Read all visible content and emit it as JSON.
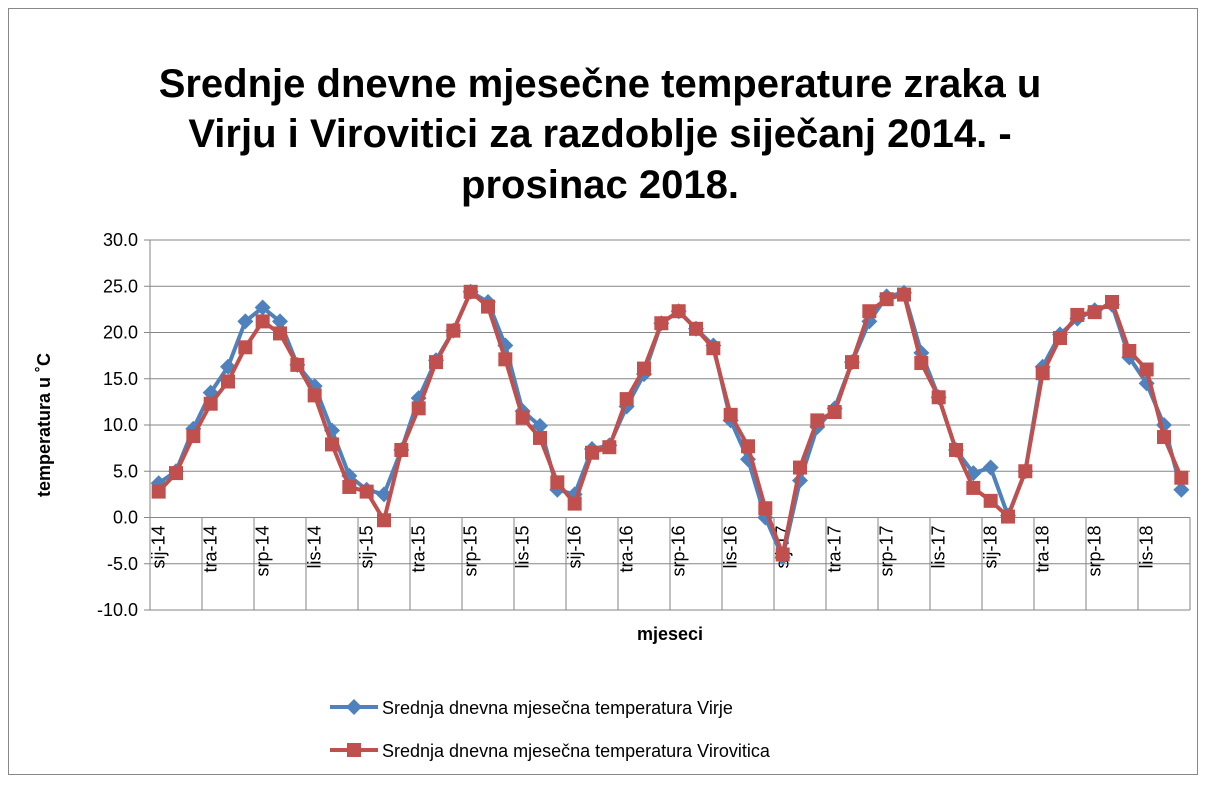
{
  "chart_data": {
    "type": "line",
    "title": [
      "Srednje dnevne mjesečne temperature zraka u",
      "Virju i Virovitici za razdoblje siječanj 2014. -",
      "prosinac 2018."
    ],
    "x_label": "mjeseci",
    "y_label": "temperatura u ˚C",
    "categories": [
      "sij-14",
      null,
      null,
      "tra-14",
      null,
      null,
      "srp-14",
      null,
      null,
      "lis-14",
      null,
      null,
      "sij-15",
      null,
      null,
      "tra-15",
      null,
      null,
      "srp-15",
      null,
      null,
      "lis-15",
      null,
      null,
      "sij-16",
      null,
      null,
      "tra-16",
      null,
      null,
      "srp-16",
      null,
      null,
      "lis-16",
      null,
      null,
      "sij-17",
      null,
      null,
      "tra-17",
      null,
      null,
      "srp-17",
      null,
      null,
      "lis-17",
      null,
      null,
      "sij-18",
      null,
      null,
      "tra-18",
      null,
      null,
      "srp-18",
      null,
      null,
      "lis-18",
      null,
      null
    ],
    "series": [
      {
        "name": "Srednja dnevna mjesečna temperatura Virje",
        "color": "#4f81bd",
        "marker": "diamond",
        "values": [
          3.7,
          5.0,
          9.6,
          13.5,
          16.3,
          21.2,
          22.7,
          21.2,
          16.5,
          14.2,
          9.4,
          4.5,
          3.0,
          2.5,
          7.3,
          12.9,
          17.0,
          20.2,
          24.4,
          23.3,
          18.6,
          11.5,
          9.9,
          3.0,
          2.5,
          7.4,
          7.8,
          12.0,
          15.5,
          21.0,
          22.3,
          20.4,
          18.6,
          10.5,
          6.3,
          0.0,
          -4.3,
          4.0,
          9.8,
          11.8,
          16.8,
          21.2,
          23.9,
          24.3,
          17.8,
          13.0,
          7.3,
          4.8,
          5.4,
          0.2,
          5.0,
          16.3,
          19.8,
          21.5,
          22.4,
          23.0,
          17.3,
          14.5,
          10.0,
          3.0
        ]
      },
      {
        "name": "Srednja dnevna mjesečna temperatura Virovitica",
        "color": "#c0504d",
        "marker": "square",
        "values": [
          2.8,
          4.8,
          8.8,
          12.3,
          14.7,
          18.4,
          21.2,
          19.9,
          16.5,
          13.2,
          7.9,
          3.3,
          2.8,
          -0.3,
          7.3,
          11.8,
          16.8,
          20.2,
          24.4,
          22.8,
          17.1,
          10.8,
          8.6,
          3.8,
          1.5,
          7.0,
          7.6,
          12.8,
          16.1,
          21.0,
          22.3,
          20.4,
          18.3,
          11.1,
          7.7,
          1.0,
          -4.0,
          5.4,
          10.5,
          11.4,
          16.8,
          22.3,
          23.6,
          24.1,
          16.7,
          13.0,
          7.3,
          3.2,
          1.8,
          0.1,
          5.0,
          15.6,
          19.4,
          21.9,
          22.2,
          23.3,
          18.0,
          16.0,
          8.7,
          4.3
        ]
      }
    ],
    "ylim": [
      -10,
      30
    ],
    "yticks": [
      {
        "value": -10,
        "label": "-10.0"
      },
      {
        "value": -5,
        "label": "-5.0"
      },
      {
        "value": 0,
        "label": "0.0"
      },
      {
        "value": 5,
        "label": "5.0"
      },
      {
        "value": 10,
        "label": "10.0"
      },
      {
        "value": 15,
        "label": "15.0"
      },
      {
        "value": 20,
        "label": "20.0"
      },
      {
        "value": 25,
        "label": "25.0"
      },
      {
        "value": 30,
        "label": "30.0"
      }
    ],
    "grid": true,
    "legend": "bottom"
  }
}
